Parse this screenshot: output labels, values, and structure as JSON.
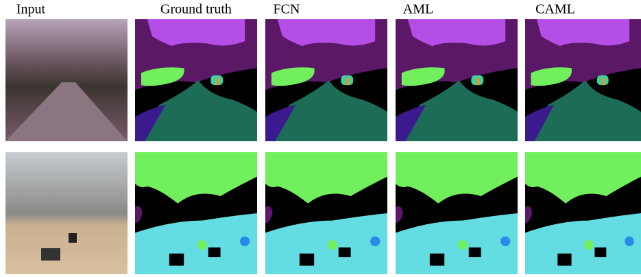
{
  "headers": [
    "Input",
    "Ground truth",
    "FCN",
    "AML",
    "CAML"
  ]
}
